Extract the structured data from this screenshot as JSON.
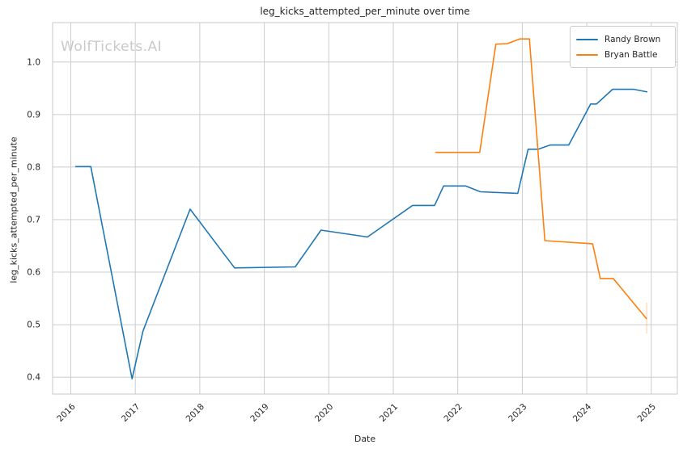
{
  "watermark": "WolfTickets.AI",
  "chart_data": {
    "type": "line",
    "title": "leg_kicks_attempted_per_minute over time",
    "xlabel": "Date",
    "ylabel": "leg_kicks_attempted_per_minute",
    "x_ticks": [
      2016,
      2017,
      2018,
      2019,
      2020,
      2021,
      2022,
      2023,
      2024,
      2025
    ],
    "y_ticks": [
      0.4,
      0.5,
      0.6,
      0.7,
      0.8,
      0.9,
      1.0
    ],
    "xlim": [
      2015.718,
      2025.404
    ],
    "ylim": [
      0.368,
      1.075
    ],
    "grid": true,
    "grid_color": "#cccccc",
    "spine_color": "#c8c8c8",
    "tick_label_color": "#262626",
    "legend_position": "upper right",
    "series": [
      {
        "name": "Randy Brown",
        "color": "#1f77b4",
        "x": [
          2016.07,
          2016.31,
          2016.95,
          2017.12,
          2017.85,
          2018.54,
          2019.48,
          2019.88,
          2020.6,
          2021.3,
          2021.64,
          2021.78,
          2022.12,
          2022.35,
          2022.93,
          2023.09,
          2023.25,
          2023.43,
          2023.72,
          2024.06,
          2024.15,
          2024.4,
          2024.73,
          2024.94
        ],
        "y": [
          0.801,
          0.801,
          0.397,
          0.488,
          0.72,
          0.608,
          0.61,
          0.68,
          0.667,
          0.727,
          0.727,
          0.764,
          0.764,
          0.753,
          0.75,
          0.834,
          0.834,
          0.842,
          0.842,
          0.92,
          0.92,
          0.948,
          0.948,
          0.943
        ]
      },
      {
        "name": "Bryan Battle",
        "color": "#ff7f0e",
        "x": [
          2021.65,
          2022.34,
          2022.59,
          2022.77,
          2022.96,
          2023.11,
          2023.35,
          2024.09,
          2024.21,
          2024.41,
          2024.93
        ],
        "y": [
          0.828,
          0.828,
          1.034,
          1.035,
          1.044,
          1.044,
          0.66,
          0.654,
          0.588,
          0.588,
          0.511
        ]
      }
    ],
    "end_marker": {
      "series": "Bryan Battle",
      "x": 2024.93,
      "y_from": 0.542,
      "y_to": 0.483,
      "color": "#ff7f0e",
      "opacity": 0.3
    }
  }
}
